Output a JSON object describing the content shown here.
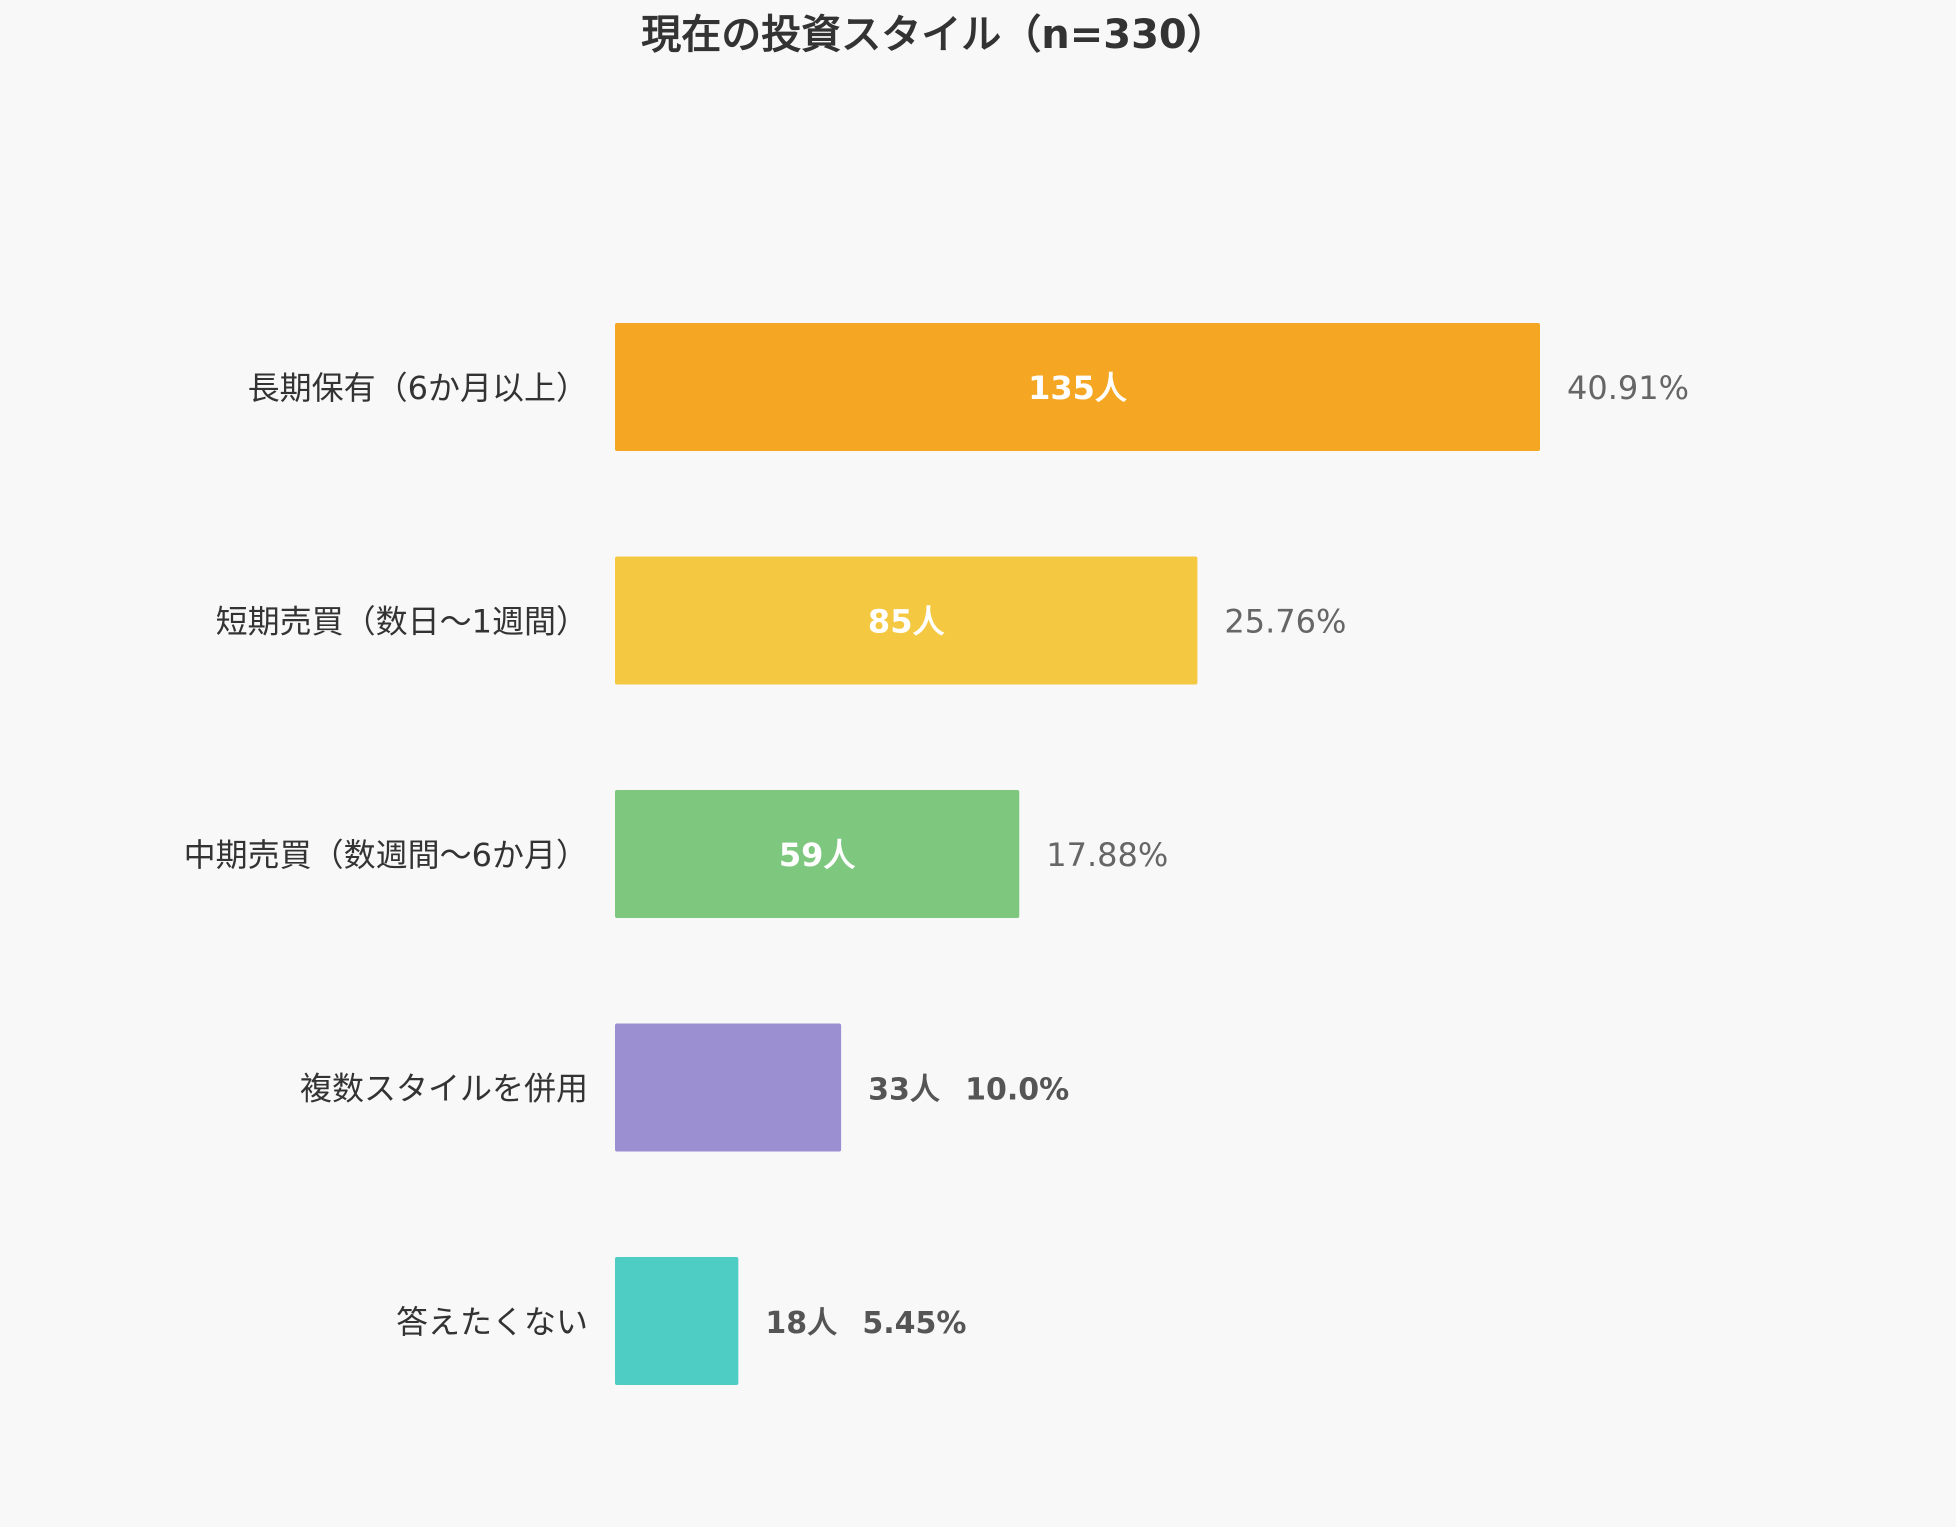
{
  "chart_data": {
    "type": "bar",
    "orientation": "horizontal",
    "title": "現在の投資スタイル（n=330）",
    "xlabel": "",
    "ylabel": "",
    "xlim": [
      0,
      135
    ],
    "grid": false,
    "legend": "none",
    "unit": "人",
    "categories": [
      "長期保有（6か月以上）",
      "短期売買（数日〜1週間）",
      "中期売買（数週間〜6か月）",
      "複数スタイルを併用",
      "答えたくない"
    ],
    "values": [
      135,
      85,
      59,
      33,
      18
    ],
    "count_labels": [
      "135人",
      "85人",
      "59人",
      "33人",
      "18人"
    ],
    "percent_labels": [
      "40.91%",
      "25.76%",
      "17.88%",
      "10.0%",
      "5.45%"
    ],
    "colors": [
      "#f5a623",
      "#f5c842",
      "#7ec77f",
      "#9b8fd1",
      "#4ecdc4"
    ]
  }
}
